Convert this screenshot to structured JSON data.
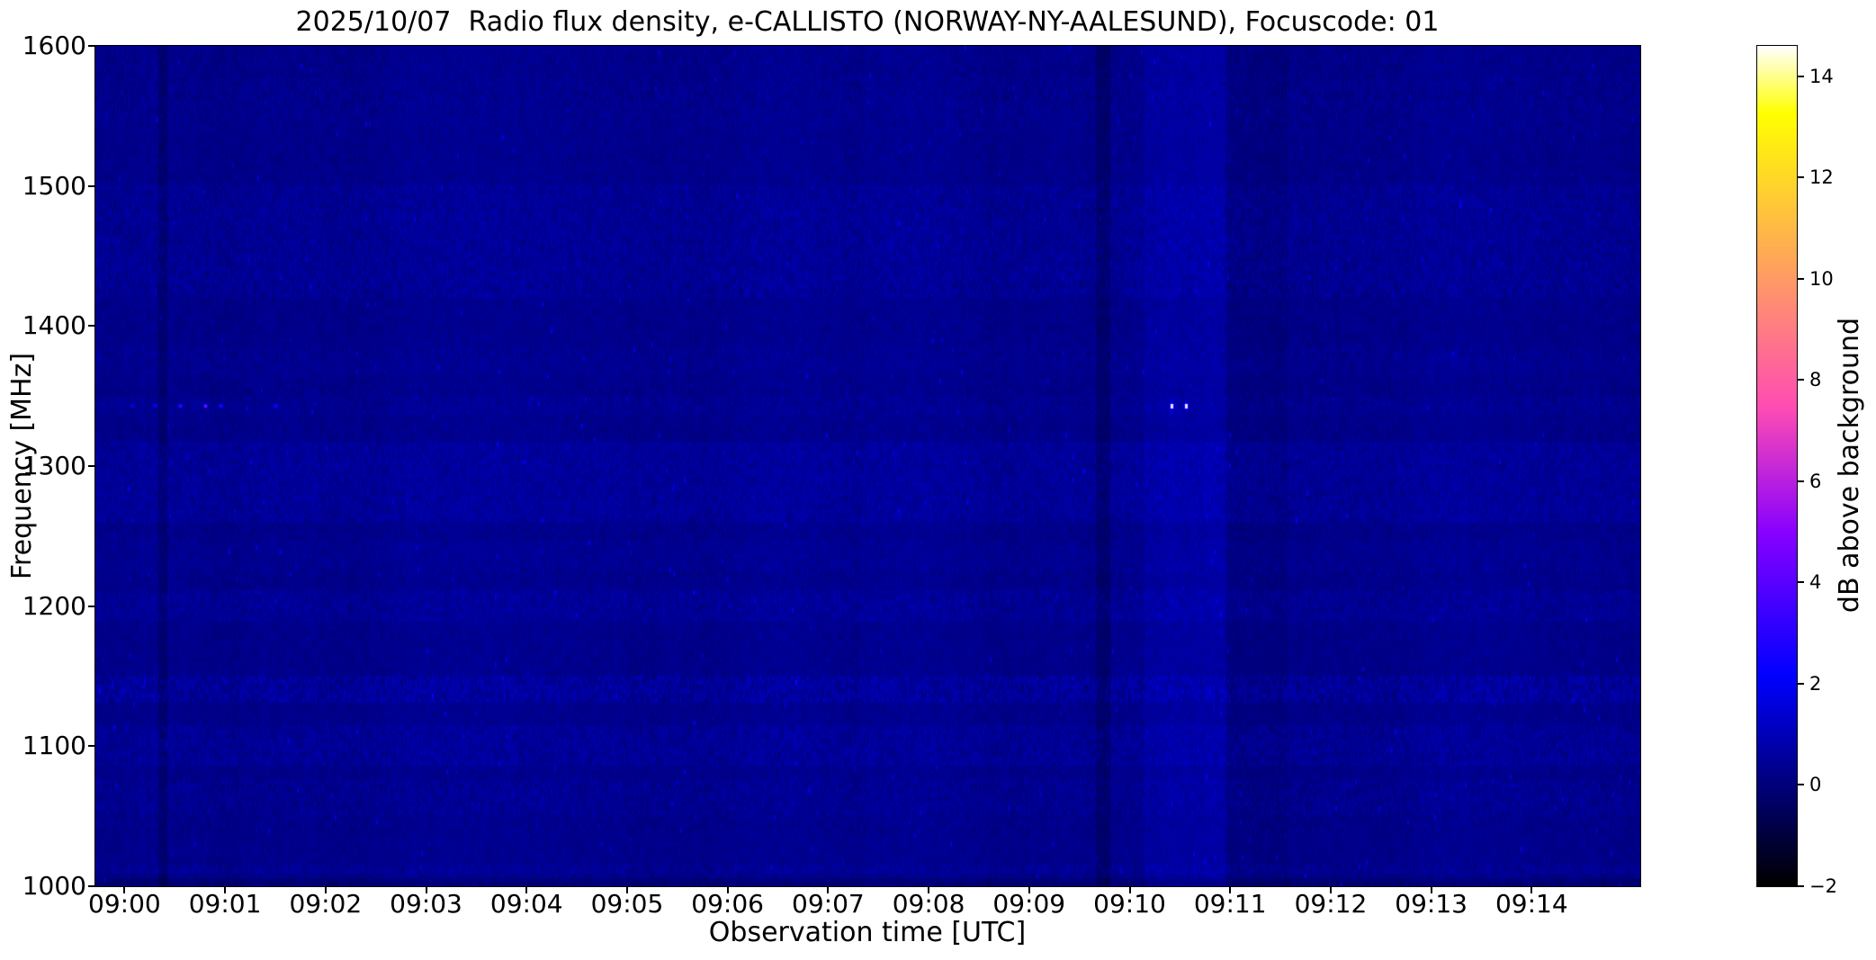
{
  "chart_data": {
    "type": "heatmap",
    "title": "2025/10/07  Radio flux density, e-CALLISTO (NORWAY-NY-AALESUND), Focuscode: 01",
    "xlabel": "Observation time [UTC]",
    "ylabel": "Frequency [MHz]",
    "colorbar_label": "dB above background",
    "colormap": "gnuplot2",
    "x_range_minutes": [
      -0.29,
      15.08
    ],
    "x_ticks": [
      {
        "minute": 0,
        "label": "09:00"
      },
      {
        "minute": 1,
        "label": "09:01"
      },
      {
        "minute": 2,
        "label": "09:02"
      },
      {
        "minute": 3,
        "label": "09:03"
      },
      {
        "minute": 4,
        "label": "09:04"
      },
      {
        "minute": 5,
        "label": "09:05"
      },
      {
        "minute": 6,
        "label": "09:06"
      },
      {
        "minute": 7,
        "label": "09:07"
      },
      {
        "minute": 8,
        "label": "09:08"
      },
      {
        "minute": 9,
        "label": "09:09"
      },
      {
        "minute": 10,
        "label": "09:10"
      },
      {
        "minute": 11,
        "label": "09:11"
      },
      {
        "minute": 12,
        "label": "09:12"
      },
      {
        "minute": 13,
        "label": "09:13"
      },
      {
        "minute": 14,
        "label": "09:14"
      }
    ],
    "ylim": [
      1000,
      1600
    ],
    "y_ticks": [
      1600,
      1500,
      1400,
      1300,
      1200,
      1100,
      1000
    ],
    "colorbar": {
      "vmin": -2,
      "vmax": 14.6,
      "ticks": [
        14,
        12,
        10,
        8,
        6,
        4,
        2,
        0,
        -2
      ]
    },
    "background_level_db": 0.3,
    "noise_seed": 20251007,
    "frequency_bands_db": [
      {
        "f0": 1540,
        "f1": 1578,
        "delta": 0.05,
        "var": 0.08
      },
      {
        "f0": 1420,
        "f1": 1502,
        "delta": 0.18,
        "var": 0.14
      },
      {
        "f0": 1365,
        "f1": 1384,
        "delta": 0.08,
        "var": 0.06
      },
      {
        "f0": 1338,
        "f1": 1349,
        "delta": 0.12,
        "var": 0.1
      },
      {
        "f0": 1258,
        "f1": 1316,
        "delta": 0.25,
        "var": 0.12
      },
      {
        "f0": 1225,
        "f1": 1248,
        "delta": 0.1,
        "var": 0.06
      },
      {
        "f0": 1190,
        "f1": 1212,
        "delta": 0.2,
        "var": 0.12
      },
      {
        "f0": 1130,
        "f1": 1150,
        "delta": 0.32,
        "var": 0.28
      },
      {
        "f0": 1085,
        "f1": 1115,
        "delta": 0.22,
        "var": 0.14
      },
      {
        "f0": 1052,
        "f1": 1076,
        "delta": 0.12,
        "var": 0.1
      },
      {
        "f0": 1008,
        "f1": 1015,
        "delta": 0.15,
        "var": 0.18
      },
      {
        "f0": 1000,
        "f1": 1007,
        "delta": -0.35,
        "var": 0.05
      }
    ],
    "time_features": [
      {
        "t0": 0.33,
        "t1": 0.42,
        "delta": -0.45
      },
      {
        "t0": 9.66,
        "t1": 9.8,
        "delta": -0.5
      },
      {
        "t0": 10.15,
        "t1": 10.95,
        "delta": 0.28
      },
      {
        "t0": 10.98,
        "t1": 11.58,
        "delta": -0.18
      }
    ],
    "points": [
      {
        "t_min": 0.08,
        "freq_mhz": 1343,
        "db": 1.6
      },
      {
        "t_min": 0.3,
        "freq_mhz": 1343,
        "db": 2.0
      },
      {
        "t_min": 0.55,
        "freq_mhz": 1343,
        "db": 3.2
      },
      {
        "t_min": 0.8,
        "freq_mhz": 1343,
        "db": 5.0
      },
      {
        "t_min": 0.95,
        "freq_mhz": 1343,
        "db": 2.6
      },
      {
        "t_min": 1.5,
        "freq_mhz": 1343,
        "db": 2.2
      },
      {
        "t_min": 10.42,
        "freq_mhz": 1343,
        "db": 6.5
      },
      {
        "t_min": 10.56,
        "freq_mhz": 1343,
        "db": 7.0
      }
    ]
  }
}
